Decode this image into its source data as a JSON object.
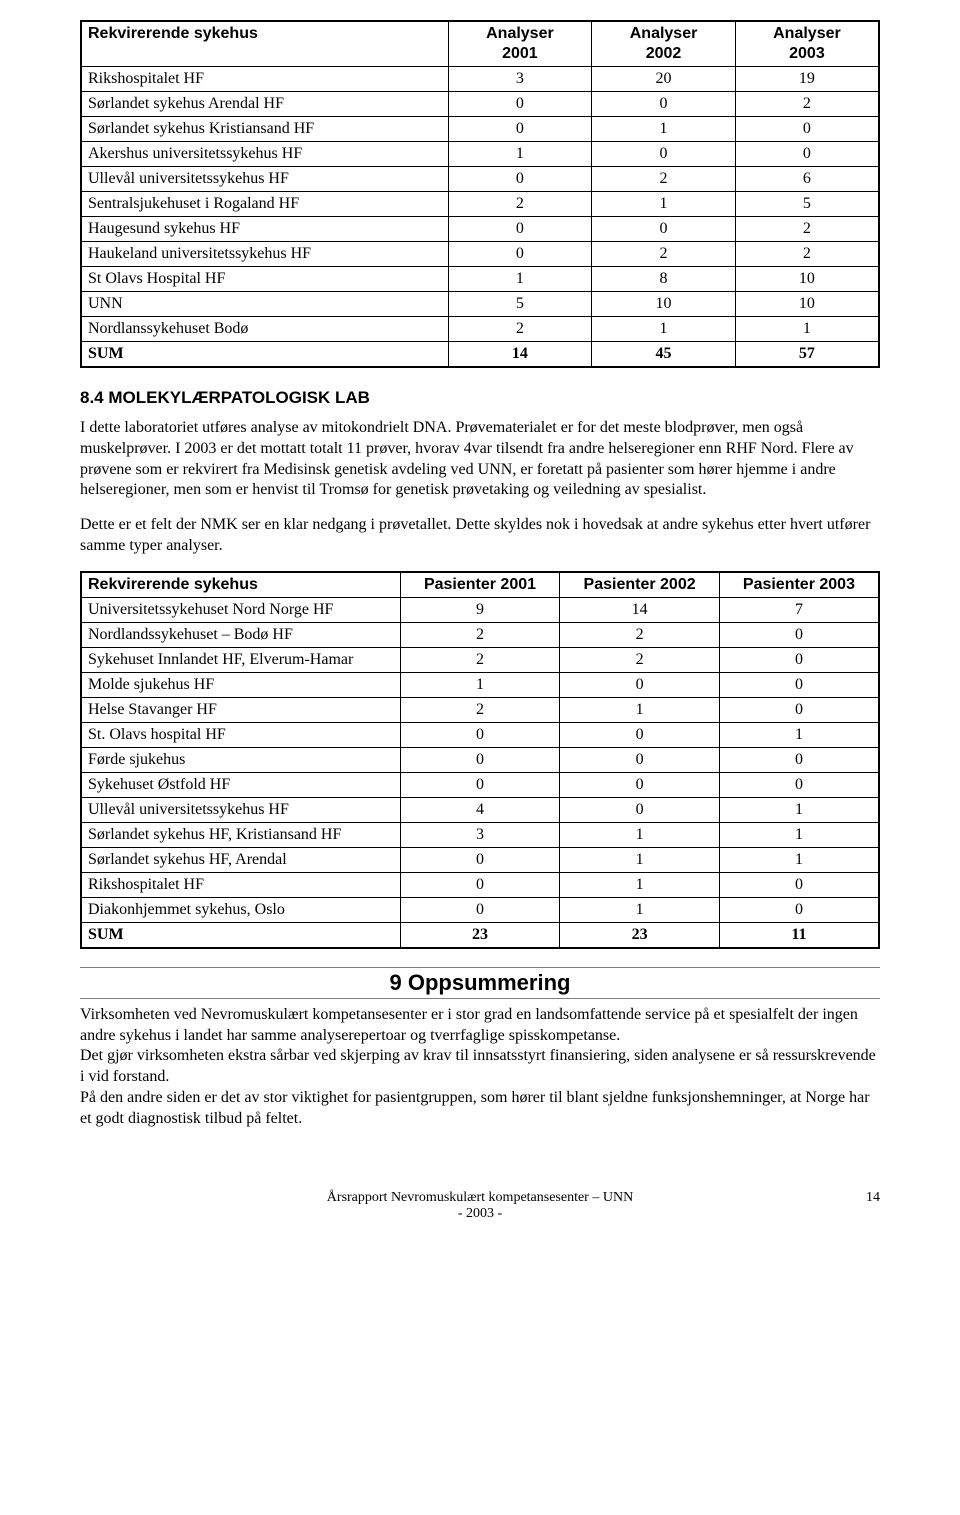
{
  "table1": {
    "headers": [
      "Rekvirerende sykehus",
      "Analyser 2001",
      "Analyser 2002",
      "Analyser 2003"
    ],
    "rows": [
      [
        "Rikshospitalet HF",
        "3",
        "20",
        "19"
      ],
      [
        "Sørlandet sykehus Arendal HF",
        "0",
        "0",
        "2"
      ],
      [
        "Sørlandet sykehus Kristiansand HF",
        "0",
        "1",
        "0"
      ],
      [
        "Akershus universitetssykehus HF",
        "1",
        "0",
        "0"
      ],
      [
        "Ullevål universitetssykehus HF",
        "0",
        "2",
        "6"
      ],
      [
        "Sentralsjukehuset i Rogaland HF",
        "2",
        "1",
        "5"
      ],
      [
        "Haugesund sykehus HF",
        "0",
        "0",
        "2"
      ],
      [
        "Haukeland universitetssykehus HF",
        "0",
        "2",
        "2"
      ],
      [
        "St Olavs Hospital HF",
        "1",
        "8",
        "10"
      ],
      [
        "UNN",
        "5",
        "10",
        "10"
      ],
      [
        "Nordlanssykehuset Bodø",
        "2",
        "1",
        "1"
      ]
    ],
    "sum": [
      "SUM",
      "14",
      "45",
      "57"
    ]
  },
  "subheading": "8.4 MOLEKYLÆRPATOLOGISK LAB",
  "para1": "I dette laboratoriet utføres analyse av mitokondrielt DNA. Prøvematerialet er for det meste blodprøver, men også muskelprøver. I 2003 er det mottatt totalt 11 prøver, hvorav 4var tilsendt fra andre helseregioner enn RHF Nord. Flere av prøvene som er rekvirert fra Medisinsk genetisk avdeling ved UNN, er foretatt på pasienter som hører hjemme i andre helseregioner, men som er henvist til Tromsø for genetisk prøvetaking og veiledning av spesialist.",
  "para2": "Dette er et felt der NMK ser en klar nedgang i prøvetallet. Dette skyldes nok i hovedsak at andre sykehus etter hvert utfører samme typer analyser.",
  "table2": {
    "headers": [
      "Rekvirerende sykehus",
      "Pasienter 2001",
      "Pasienter 2002",
      "Pasienter 2003"
    ],
    "rows": [
      [
        "Universitetssykehuset Nord Norge HF",
        "9",
        "14",
        "7"
      ],
      [
        "Nordlandssykehuset – Bodø HF",
        "2",
        "2",
        "0"
      ],
      [
        "Sykehuset Innlandet HF, Elverum-Hamar",
        "2",
        "2",
        "0"
      ],
      [
        "Molde sjukehus HF",
        "1",
        "0",
        "0"
      ],
      [
        "Helse Stavanger HF",
        "2",
        "1",
        "0"
      ],
      [
        "St. Olavs hospital HF",
        "0",
        "0",
        "1"
      ],
      [
        "Førde sjukehus",
        "0",
        "0",
        "0"
      ],
      [
        "Sykehuset Østfold HF",
        "0",
        "0",
        "0"
      ],
      [
        "Ullevål universitetssykehus HF",
        "4",
        "0",
        "1"
      ],
      [
        "Sørlandet sykehus HF, Kristiansand HF",
        "3",
        "1",
        "1"
      ],
      [
        "Sørlandet sykehus HF, Arendal",
        "0",
        "1",
        "1"
      ],
      [
        "Rikshospitalet HF",
        "0",
        "1",
        "0"
      ],
      [
        "Diakonhjemmet sykehus, Oslo",
        "0",
        "1",
        "0"
      ]
    ],
    "sum": [
      "SUM",
      "23",
      "23",
      "11"
    ]
  },
  "section_heading": "9 Oppsummering",
  "para3": "Virksomheten ved Nevromuskulært kompetansesenter er i stor grad en landsomfattende service på et spesialfelt der ingen andre sykehus i landet har samme analyserepertoar og tverrfaglige spisskompetanse.",
  "para4": "Det gjør virksomheten ekstra sårbar ved skjerping av krav til innsatsstyrt finansiering, siden analysene er så ressurskrevende i vid forstand.",
  "para5": "På den andre siden er det av stor viktighet for pasientgruppen, som hører til blant sjeldne funksjonshemninger, at Norge har et godt diagnostisk tilbud på feltet.",
  "footer_line1": "Årsrapport Nevromuskulært kompetansesenter – UNN",
  "footer_line2": "- 2003 -",
  "page_number": "14",
  "colors": {
    "text": "#000000",
    "background": "#ffffff",
    "border": "#000000",
    "rule": "#7f7f7f"
  },
  "table_col_widths_pct": {
    "table1": [
      46,
      18,
      18,
      18
    ],
    "table2": [
      40,
      20,
      20,
      20
    ]
  }
}
